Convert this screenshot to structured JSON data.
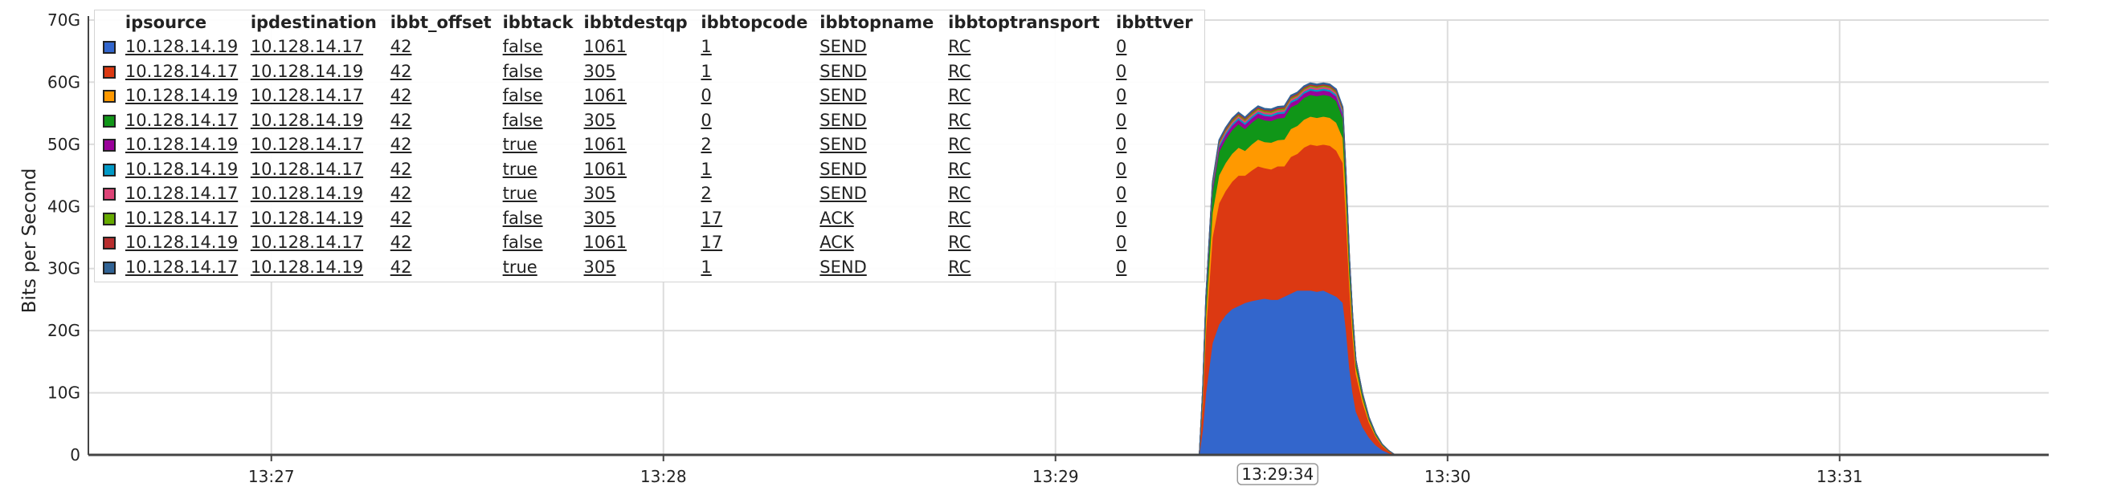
{
  "chart_data": {
    "type": "area",
    "stacked": true,
    "title": "",
    "xlabel": "",
    "ylabel": "Bits per Second",
    "ylim": [
      0,
      70
    ],
    "y_unit": "G",
    "y_ticks": [
      "0",
      "10G",
      "20G",
      "30G",
      "40G",
      "50G",
      "60G",
      "70G"
    ],
    "x_ticks": [
      "13:27",
      "13:28",
      "13:29",
      "13:30",
      "13:31"
    ],
    "x_tick_seconds": [
      0,
      60,
      120,
      180,
      240
    ],
    "xlim_seconds": [
      -28,
      272
    ],
    "highlight_label": "13:29:34",
    "highlight_seconds": 154,
    "grid": true,
    "legend_placement": "top-left",
    "x_seconds": [
      142,
      142.5,
      143,
      144,
      145,
      146,
      147,
      148,
      149,
      150,
      151,
      152,
      153,
      154,
      155,
      156,
      157,
      158,
      159,
      160,
      161,
      162,
      163,
      164,
      164.5,
      165,
      165.5,
      166,
      167,
      168,
      169,
      170,
      171,
      172
    ],
    "series": [
      {
        "color": "#3366cc",
        "values": [
          0,
          4,
          10,
          18,
          21,
          22.5,
          23.5,
          24,
          24.5,
          24.8,
          25,
          25.2,
          25,
          25,
          25.5,
          26,
          26.5,
          26.5,
          26.5,
          26.3,
          26.5,
          26,
          25.5,
          24.5,
          20,
          14,
          10,
          7,
          4.5,
          2.8,
          1.6,
          0.8,
          0.3,
          0
        ]
      },
      {
        "color": "#dc3912",
        "values": [
          0,
          4,
          10,
          17,
          19.5,
          20,
          20.5,
          21,
          20.5,
          21,
          21.5,
          21,
          21,
          21.5,
          21,
          22,
          22,
          23,
          23.5,
          23.5,
          23.5,
          23.8,
          23.5,
          22.5,
          18,
          13,
          9,
          6,
          4,
          2.4,
          1.4,
          0.7,
          0.3,
          0
        ]
      },
      {
        "color": "#ff9900",
        "values": [
          0,
          1,
          2.5,
          4,
          4.5,
          4.5,
          4.5,
          4.5,
          4,
          4.2,
          4.3,
          4.2,
          4.3,
          4.2,
          4.3,
          4.5,
          4.5,
          4.5,
          4.5,
          4.5,
          4.5,
          4.5,
          4.5,
          4,
          3.2,
          2.3,
          1.6,
          1.1,
          0.7,
          0.4,
          0.2,
          0.1,
          0.05,
          0
        ]
      },
      {
        "color": "#109618",
        "values": [
          0,
          0.8,
          2,
          3.3,
          3.8,
          3.8,
          3.8,
          3.8,
          3.5,
          3.5,
          3.5,
          3.5,
          3.5,
          3.5,
          3.5,
          3.5,
          3.5,
          3.5,
          3.5,
          3.5,
          3.5,
          3.5,
          3.5,
          3.2,
          2.5,
          1.8,
          1.2,
          0.8,
          0.5,
          0.3,
          0.2,
          0.1,
          0.05,
          0
        ]
      },
      {
        "color": "#990099",
        "values": [
          0,
          0.2,
          0.4,
          0.6,
          0.7,
          0.7,
          0.7,
          0.7,
          0.7,
          0.7,
          0.7,
          0.7,
          0.7,
          0.7,
          0.7,
          0.7,
          0.7,
          0.7,
          0.7,
          0.7,
          0.7,
          0.7,
          0.7,
          0.6,
          0.5,
          0.35,
          0.25,
          0.15,
          0.1,
          0.06,
          0.03,
          0.02,
          0.01,
          0
        ]
      },
      {
        "color": "#0099c6",
        "values": [
          0,
          0.1,
          0.2,
          0.3,
          0.3,
          0.3,
          0.3,
          0.3,
          0.3,
          0.3,
          0.3,
          0.3,
          0.3,
          0.3,
          0.3,
          0.3,
          0.3,
          0.3,
          0.3,
          0.3,
          0.3,
          0.3,
          0.3,
          0.3,
          0.2,
          0.15,
          0.1,
          0.07,
          0.05,
          0.03,
          0.02,
          0.01,
          0,
          0
        ]
      },
      {
        "color": "#dd4477",
        "values": [
          0,
          0.1,
          0.2,
          0.3,
          0.3,
          0.3,
          0.3,
          0.3,
          0.3,
          0.3,
          0.3,
          0.3,
          0.3,
          0.3,
          0.3,
          0.3,
          0.3,
          0.3,
          0.3,
          0.3,
          0.3,
          0.3,
          0.3,
          0.3,
          0.2,
          0.15,
          0.1,
          0.07,
          0.05,
          0.03,
          0.02,
          0.01,
          0,
          0
        ]
      },
      {
        "color": "#66aa00",
        "values": [
          0,
          0.05,
          0.1,
          0.15,
          0.2,
          0.2,
          0.2,
          0.2,
          0.2,
          0.2,
          0.2,
          0.2,
          0.2,
          0.2,
          0.2,
          0.2,
          0.2,
          0.2,
          0.2,
          0.2,
          0.2,
          0.2,
          0.2,
          0.2,
          0.15,
          0.1,
          0.07,
          0.05,
          0.03,
          0.02,
          0.01,
          0,
          0,
          0
        ]
      },
      {
        "color": "#b82e2e",
        "values": [
          0,
          0.05,
          0.1,
          0.15,
          0.2,
          0.2,
          0.2,
          0.2,
          0.2,
          0.2,
          0.2,
          0.2,
          0.2,
          0.2,
          0.2,
          0.2,
          0.2,
          0.2,
          0.2,
          0.2,
          0.2,
          0.2,
          0.2,
          0.2,
          0.15,
          0.1,
          0.07,
          0.05,
          0.03,
          0.02,
          0.01,
          0,
          0,
          0
        ]
      },
      {
        "color": "#316395",
        "values": [
          0,
          0.05,
          0.1,
          0.15,
          0.2,
          0.2,
          0.2,
          0.2,
          0.2,
          0.2,
          0.2,
          0.2,
          0.2,
          0.2,
          0.2,
          0.2,
          0.2,
          0.2,
          0.2,
          0.2,
          0.2,
          0.2,
          0.2,
          0.2,
          0.15,
          0.1,
          0.07,
          0.05,
          0.03,
          0.02,
          0.01,
          0,
          0,
          0
        ]
      }
    ]
  },
  "legend": {
    "headers": [
      "ipsource",
      "ipdestination",
      "ibbt_offset",
      "ibbtack",
      "ibbtdestqp",
      "ibbtopcode",
      "ibbtopname",
      "ibbtoptransport",
      "ibbttver"
    ],
    "rows": [
      {
        "color": "#3366cc",
        "cells": [
          "10.128.14.19",
          "10.128.14.17",
          "42",
          "false",
          "1061",
          "1",
          "SEND",
          "RC",
          "0"
        ]
      },
      {
        "color": "#dc3912",
        "cells": [
          "10.128.14.17",
          "10.128.14.19",
          "42",
          "false",
          "305",
          "1",
          "SEND",
          "RC",
          "0"
        ]
      },
      {
        "color": "#ff9900",
        "cells": [
          "10.128.14.19",
          "10.128.14.17",
          "42",
          "false",
          "1061",
          "0",
          "SEND",
          "RC",
          "0"
        ]
      },
      {
        "color": "#109618",
        "cells": [
          "10.128.14.17",
          "10.128.14.19",
          "42",
          "false",
          "305",
          "0",
          "SEND",
          "RC",
          "0"
        ]
      },
      {
        "color": "#990099",
        "cells": [
          "10.128.14.19",
          "10.128.14.17",
          "42",
          "true",
          "1061",
          "2",
          "SEND",
          "RC",
          "0"
        ]
      },
      {
        "color": "#0099c6",
        "cells": [
          "10.128.14.19",
          "10.128.14.17",
          "42",
          "true",
          "1061",
          "1",
          "SEND",
          "RC",
          "0"
        ]
      },
      {
        "color": "#dd4477",
        "cells": [
          "10.128.14.17",
          "10.128.14.19",
          "42",
          "true",
          "305",
          "2",
          "SEND",
          "RC",
          "0"
        ]
      },
      {
        "color": "#66aa00",
        "cells": [
          "10.128.14.17",
          "10.128.14.19",
          "42",
          "false",
          "305",
          "17",
          "ACK",
          "RC",
          "0"
        ]
      },
      {
        "color": "#b82e2e",
        "cells": [
          "10.128.14.19",
          "10.128.14.17",
          "42",
          "false",
          "1061",
          "17",
          "ACK",
          "RC",
          "0"
        ]
      },
      {
        "color": "#316395",
        "cells": [
          "10.128.14.17",
          "10.128.14.19",
          "42",
          "true",
          "305",
          "1",
          "SEND",
          "RC",
          "0"
        ]
      }
    ]
  }
}
